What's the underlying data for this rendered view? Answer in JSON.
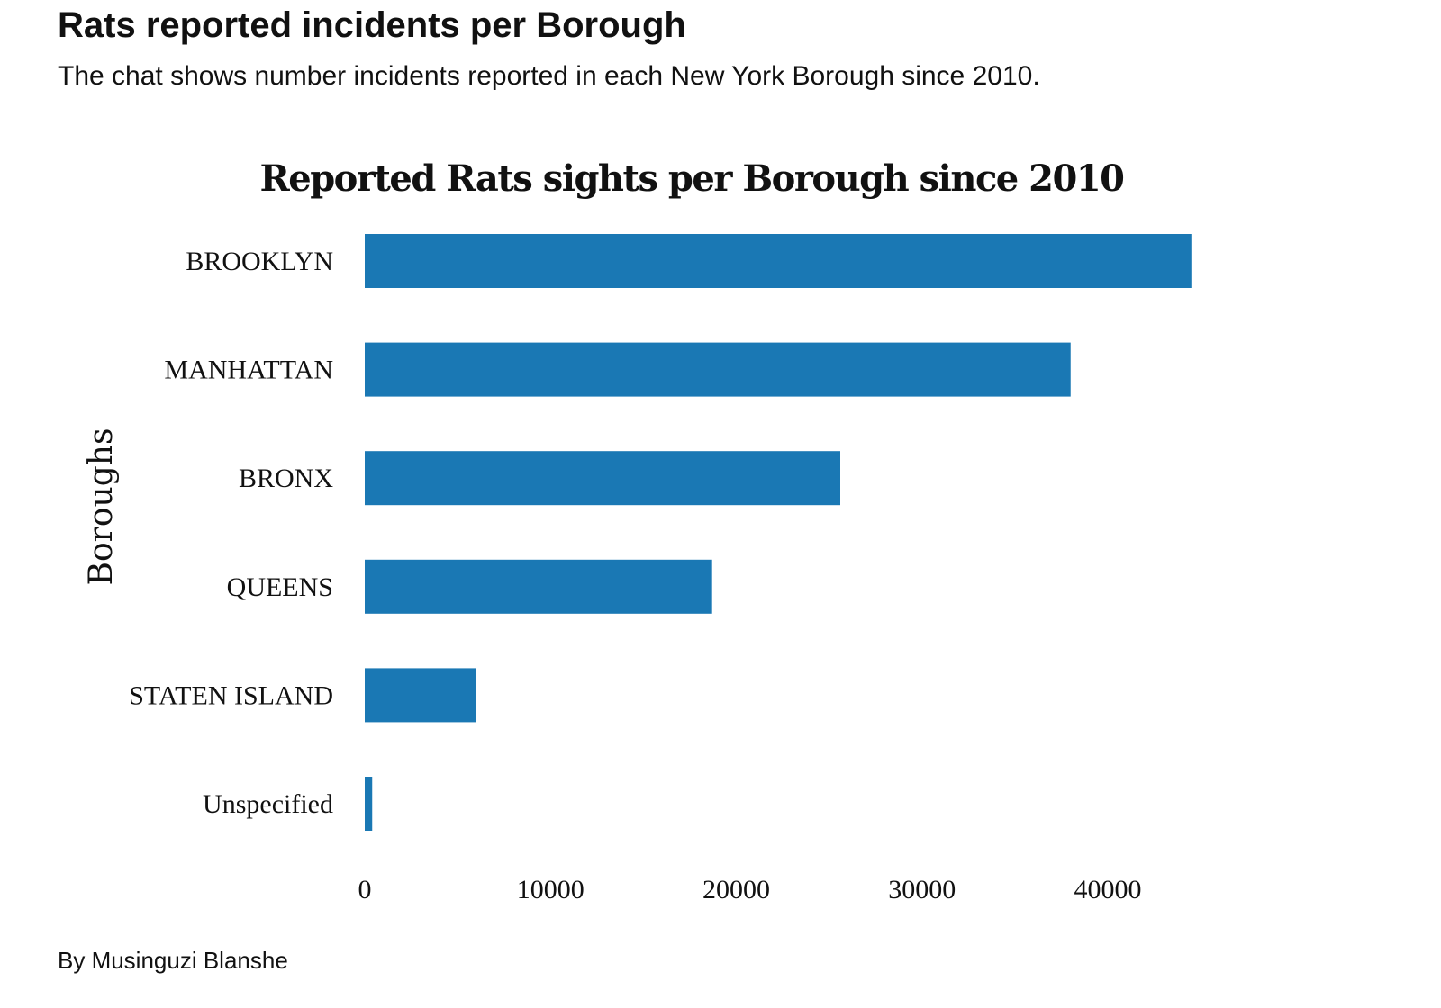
{
  "header": {
    "title": "Rats reported incidents per Borough",
    "subtitle": "The chat shows number incidents reported in each New York Borough since 2010."
  },
  "footer": {
    "credit": "By Musinguzi Blanshe"
  },
  "colors": {
    "bar": "#1a78b4",
    "text": "#111111",
    "background": "#ffffff"
  },
  "chart_data": {
    "type": "bar",
    "orientation": "horizontal",
    "title": "Reported Rats sights per Borough since 2010",
    "xlabel": "",
    "ylabel": "Boroughs",
    "categories": [
      "BROOKLYN",
      "MANHATTAN",
      "BRONX",
      "QUEENS",
      "STATEN ISLAND",
      "Unspecified"
    ],
    "values": [
      44500,
      38000,
      25600,
      18700,
      6000,
      400
    ],
    "xlim": [
      0,
      46000
    ],
    "xticks": [
      0,
      10000,
      20000,
      30000,
      40000
    ],
    "xtick_labels": [
      "0",
      "10000",
      "20000",
      "30000",
      "40000"
    ],
    "grid": false,
    "legend": "none"
  }
}
